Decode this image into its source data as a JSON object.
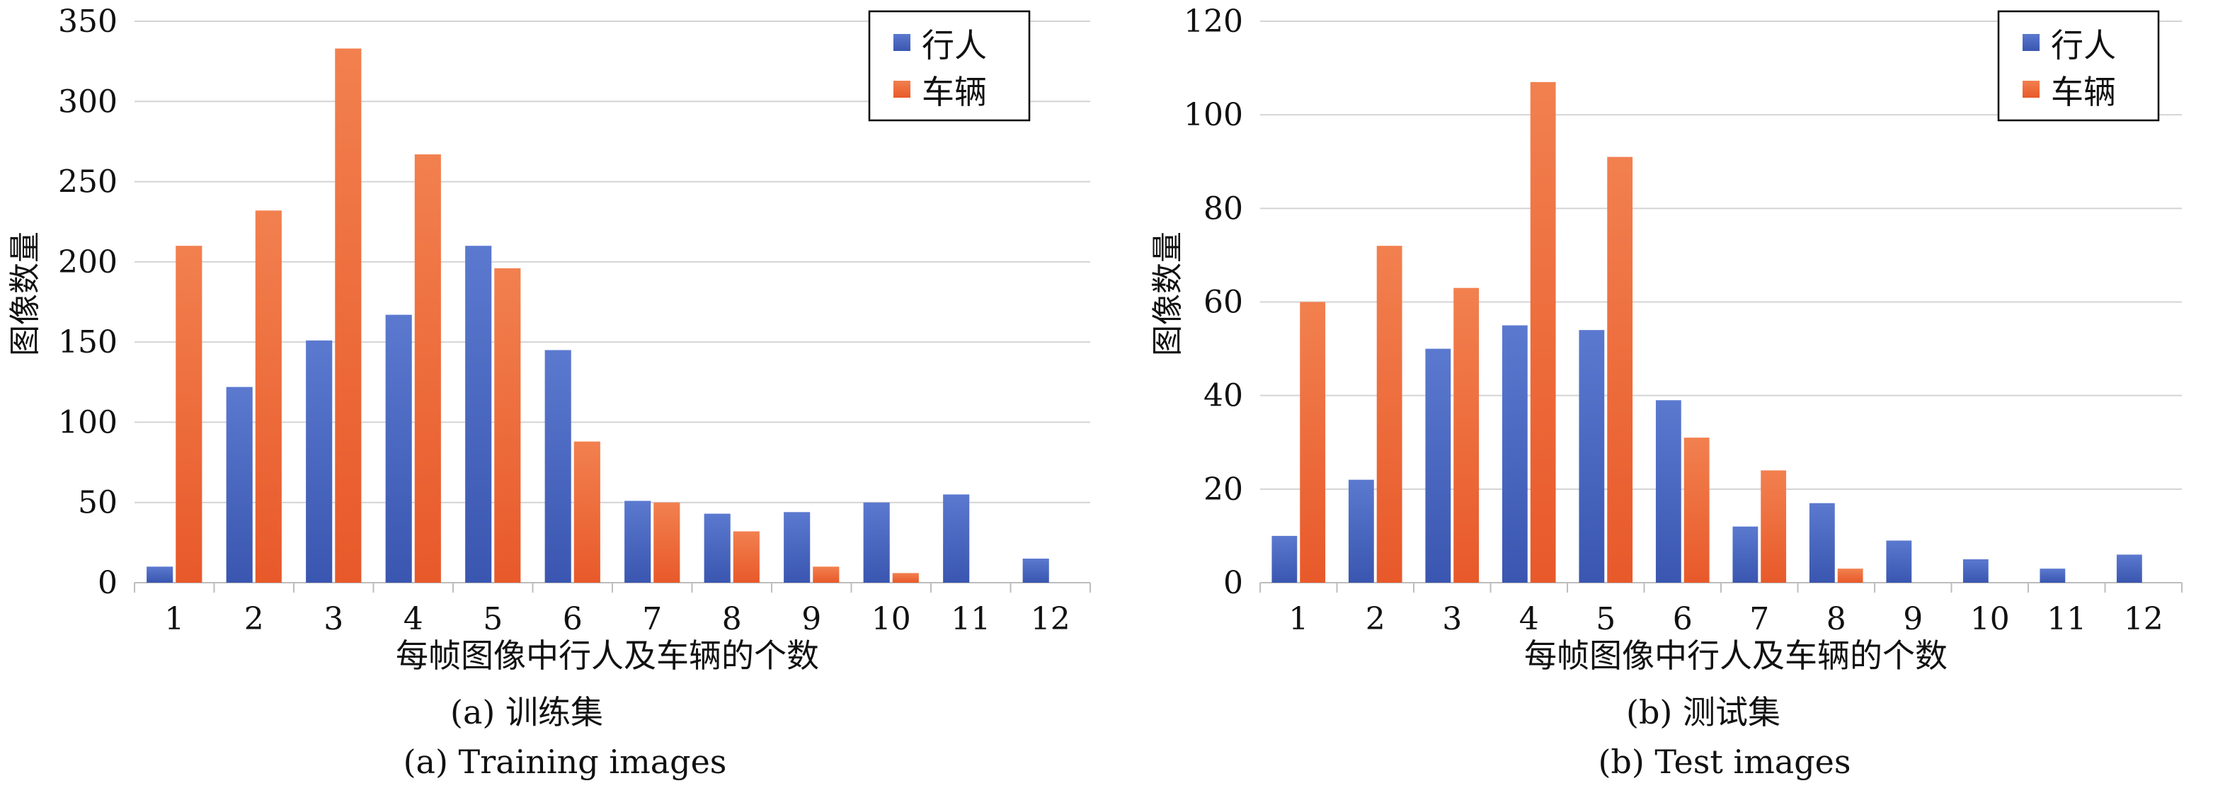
{
  "chart_data": [
    {
      "type": "bar",
      "categories": [
        "1",
        "2",
        "3",
        "4",
        "5",
        "6",
        "7",
        "8",
        "9",
        "10",
        "11",
        "12"
      ],
      "series": [
        {
          "name": "行人",
          "values": [
            10,
            122,
            151,
            167,
            210,
            145,
            51,
            43,
            44,
            50,
            55,
            15
          ]
        },
        {
          "name": "车辆",
          "values": [
            210,
            232,
            333,
            267,
            196,
            88,
            50,
            32,
            10,
            6,
            0,
            0
          ]
        }
      ],
      "ylim": [
        0,
        350
      ],
      "yticks": [
        "0",
        "50",
        "100",
        "150",
        "200",
        "250",
        "300",
        "350"
      ],
      "xlabel": "每帧图像中行人及车辆的个数",
      "ylabel": "图像数量",
      "caption_cn": "(a) 训练集",
      "caption_en": "(a) Training images",
      "legend": "top-right",
      "grid": true
    },
    {
      "type": "bar",
      "categories": [
        "1",
        "2",
        "3",
        "4",
        "5",
        "6",
        "7",
        "8",
        "9",
        "10",
        "11",
        "12"
      ],
      "series": [
        {
          "name": "行人",
          "values": [
            10,
            22,
            50,
            55,
            54,
            39,
            12,
            17,
            9,
            5,
            3,
            6
          ]
        },
        {
          "name": "车辆",
          "values": [
            60,
            72,
            63,
            107,
            91,
            31,
            24,
            3,
            0,
            0,
            0,
            0
          ]
        }
      ],
      "ylim": [
        0,
        120
      ],
      "yticks": [
        "0",
        "20",
        "40",
        "60",
        "80",
        "100",
        "120"
      ],
      "xlabel": "每帧图像中行人及车辆的个数",
      "ylabel": "图像数量",
      "caption_cn": "(b) 测试集",
      "caption_en": "(b) Test images",
      "legend": "top-right",
      "grid": true
    }
  ],
  "colors": {
    "pedestrian_top": "#5b79cf",
    "pedestrian_bottom": "#3a56b0",
    "vehicle_top": "#f2804f",
    "vehicle_bottom": "#e8592a"
  }
}
